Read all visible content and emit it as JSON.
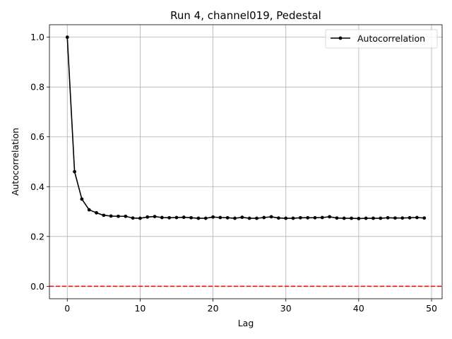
{
  "chart_data": {
    "type": "line",
    "title": "Run 4, channel019, Pedestal",
    "xlabel": "Lag",
    "ylabel": "Autocorrelation",
    "xlim": [
      -2.45,
      51.45
    ],
    "ylim": [
      -0.05,
      1.05
    ],
    "xticks": [
      0,
      10,
      20,
      30,
      40,
      50
    ],
    "yticks": [
      0.0,
      0.2,
      0.4,
      0.6,
      0.8,
      1.0
    ],
    "xtick_labels": [
      "0",
      "10",
      "20",
      "30",
      "40",
      "50"
    ],
    "ytick_labels": [
      "0.0",
      "0.2",
      "0.4",
      "0.6",
      "0.8",
      "1.0"
    ],
    "grid": true,
    "legend": {
      "placement": "top-right"
    },
    "series": [
      {
        "name": "Autocorrelation",
        "color": "#000000",
        "marker": "circle",
        "x": [
          0,
          1,
          2,
          3,
          4,
          5,
          6,
          7,
          8,
          9,
          10,
          11,
          12,
          13,
          14,
          15,
          16,
          17,
          18,
          19,
          20,
          21,
          22,
          23,
          24,
          25,
          26,
          27,
          28,
          29,
          30,
          31,
          32,
          33,
          34,
          35,
          36,
          37,
          38,
          39,
          40,
          41,
          42,
          43,
          44,
          45,
          46,
          47,
          48,
          49
        ],
        "y": [
          1.0,
          0.46,
          0.35,
          0.307,
          0.295,
          0.285,
          0.282,
          0.281,
          0.281,
          0.274,
          0.273,
          0.278,
          0.28,
          0.276,
          0.275,
          0.276,
          0.277,
          0.275,
          0.273,
          0.273,
          0.278,
          0.276,
          0.275,
          0.273,
          0.277,
          0.273,
          0.273,
          0.276,
          0.279,
          0.274,
          0.273,
          0.273,
          0.275,
          0.275,
          0.275,
          0.276,
          0.279,
          0.274,
          0.273,
          0.273,
          0.272,
          0.273,
          0.273,
          0.273,
          0.275,
          0.274,
          0.274,
          0.275,
          0.276,
          0.274
        ]
      }
    ],
    "reference_line": {
      "y": 0.0,
      "color": "#ff0000",
      "style": "dashed"
    }
  }
}
